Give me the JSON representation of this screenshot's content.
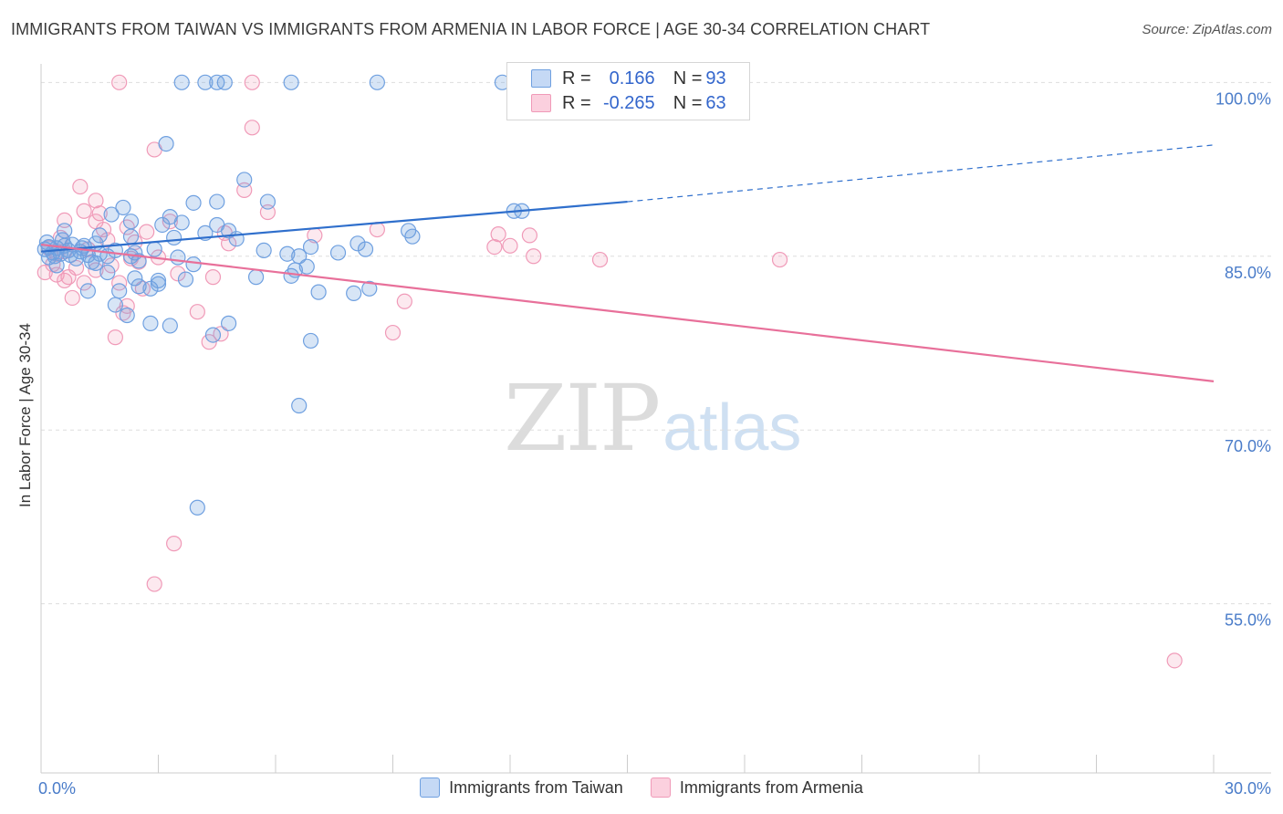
{
  "title": "IMMIGRANTS FROM TAIWAN VS IMMIGRANTS FROM ARMENIA IN LABOR FORCE | AGE 30-34 CORRELATION CHART",
  "source": "Source: ZipAtlas.com",
  "watermark": {
    "zip": "ZIP",
    "atlas": "atlas"
  },
  "legend": {
    "rows": [
      {
        "r_label": "R =",
        "r_value": "0.166",
        "n_label": "N =",
        "n_value": "93"
      },
      {
        "r_label": "R =",
        "r_value": "-0.265",
        "n_label": "N =",
        "n_value": "63"
      }
    ]
  },
  "chart_data": {
    "type": "scatter",
    "title": "IMMIGRANTS FROM TAIWAN VS IMMIGRANTS FROM ARMENIA IN LABOR FORCE | AGE 30-34 CORRELATION CHART",
    "xlabel": "",
    "ylabel": "In Labor Force | Age 30-34",
    "xlim": [
      0,
      30
    ],
    "ylim": [
      40.4,
      101.6
    ],
    "x_tick_labels": [
      "0.0%",
      "30.0%"
    ],
    "x_tick_values": [
      0,
      30
    ],
    "y_tick_labels": [
      "100.0%",
      "85.0%",
      "70.0%",
      "55.0%"
    ],
    "y_tick_values": [
      100,
      85,
      70,
      55
    ],
    "grid": true,
    "legend_position": "top-center",
    "colors": {
      "taiwan": "#6fa0e0",
      "armenia": "#f09ab8",
      "taiwan_line": "#2f6fcc",
      "armenia_line": "#e8709a",
      "tick_label": "#4a7cc9"
    },
    "series": [
      {
        "name": "Immigrants from Taiwan",
        "r": 0.166,
        "n": 93,
        "trend": {
          "x0": 0,
          "y0": 85.4,
          "x1": 15,
          "y1": 89.7,
          "dashed_to_x": 30,
          "dashed_to_y": 94.6
        },
        "points": [
          [
            3.6,
            100
          ],
          [
            4.2,
            100
          ],
          [
            4.5,
            100
          ],
          [
            4.7,
            100
          ],
          [
            6.4,
            100
          ],
          [
            8.6,
            100
          ],
          [
            11.8,
            100
          ],
          [
            3.2,
            94.7
          ],
          [
            5.2,
            91.6
          ],
          [
            3.9,
            89.6
          ],
          [
            4.5,
            89.7
          ],
          [
            5.8,
            89.7
          ],
          [
            2.1,
            89.2
          ],
          [
            12.1,
            88.9
          ],
          [
            12.3,
            88.9
          ],
          [
            1.8,
            88.6
          ],
          [
            3.3,
            88.4
          ],
          [
            2.3,
            88.0
          ],
          [
            3.6,
            87.9
          ],
          [
            3.1,
            87.7
          ],
          [
            4.5,
            87.7
          ],
          [
            4.8,
            87.2
          ],
          [
            1.5,
            86.8
          ],
          [
            2.3,
            86.7
          ],
          [
            0.6,
            87.2
          ],
          [
            3.4,
            86.6
          ],
          [
            9.4,
            87.2
          ],
          [
            9.5,
            86.7
          ],
          [
            0.2,
            85.8
          ],
          [
            0.4,
            85.7
          ],
          [
            0.6,
            85.9
          ],
          [
            0.8,
            86.0
          ],
          [
            1.1,
            85.9
          ],
          [
            1.4,
            86.1
          ],
          [
            1.9,
            85.5
          ],
          [
            0.3,
            85.3
          ],
          [
            0.5,
            85.2
          ],
          [
            0.7,
            85.5
          ],
          [
            1.0,
            85.4
          ],
          [
            1.2,
            85.1
          ],
          [
            1.5,
            85.2
          ],
          [
            1.7,
            85.0
          ],
          [
            2.3,
            85.0
          ],
          [
            3.5,
            84.9
          ],
          [
            5.7,
            85.5
          ],
          [
            6.3,
            85.2
          ],
          [
            6.6,
            85.0
          ],
          [
            6.9,
            85.8
          ],
          [
            8.1,
            86.1
          ],
          [
            8.3,
            85.6
          ],
          [
            1.4,
            84.4
          ],
          [
            2.5,
            84.6
          ],
          [
            6.8,
            84.1
          ],
          [
            6.5,
            83.8
          ],
          [
            1.7,
            83.6
          ],
          [
            2.4,
            83.1
          ],
          [
            3.0,
            82.9
          ],
          [
            3.7,
            83.0
          ],
          [
            6.4,
            83.3
          ],
          [
            2.5,
            82.4
          ],
          [
            1.2,
            82.0
          ],
          [
            2.0,
            82.0
          ],
          [
            2.8,
            82.2
          ],
          [
            3.0,
            82.6
          ],
          [
            7.1,
            81.9
          ],
          [
            8.0,
            81.8
          ],
          [
            8.4,
            82.2
          ],
          [
            1.9,
            80.8
          ],
          [
            2.2,
            79.9
          ],
          [
            2.8,
            79.2
          ],
          [
            3.3,
            79.0
          ],
          [
            4.8,
            79.2
          ],
          [
            4.4,
            78.2
          ],
          [
            6.9,
            77.7
          ],
          [
            6.6,
            72.1
          ],
          [
            4.0,
            63.3
          ],
          [
            0.1,
            85.6
          ],
          [
            0.2,
            84.9
          ],
          [
            0.4,
            84.2
          ],
          [
            0.9,
            84.8
          ],
          [
            1.3,
            84.5
          ],
          [
            2.4,
            85.3
          ],
          [
            4.2,
            87.0
          ],
          [
            0.15,
            86.2
          ],
          [
            0.35,
            85.0
          ],
          [
            0.55,
            86.4
          ],
          [
            0.75,
            85.1
          ],
          [
            1.05,
            85.7
          ],
          [
            3.9,
            84.3
          ],
          [
            5.5,
            83.2
          ],
          [
            7.6,
            85.3
          ],
          [
            2.9,
            85.6
          ],
          [
            5.0,
            86.5
          ]
        ]
      },
      {
        "name": "Immigrants from Armenia",
        "r": -0.265,
        "n": 63,
        "trend": {
          "x0": 0,
          "y0": 86.0,
          "x1": 30,
          "y1": 74.2
        },
        "points": [
          [
            2.0,
            100
          ],
          [
            5.4,
            100
          ],
          [
            13.1,
            100
          ],
          [
            5.4,
            96.1
          ],
          [
            2.9,
            94.2
          ],
          [
            1.0,
            91.0
          ],
          [
            5.2,
            90.7
          ],
          [
            1.4,
            89.8
          ],
          [
            1.1,
            88.9
          ],
          [
            1.5,
            88.7
          ],
          [
            5.8,
            88.8
          ],
          [
            0.6,
            88.1
          ],
          [
            1.4,
            88.0
          ],
          [
            3.3,
            88.0
          ],
          [
            2.2,
            87.5
          ],
          [
            1.6,
            87.3
          ],
          [
            2.7,
            87.1
          ],
          [
            4.7,
            87.0
          ],
          [
            8.6,
            87.3
          ],
          [
            11.7,
            86.9
          ],
          [
            12.5,
            86.8
          ],
          [
            7.0,
            86.8
          ],
          [
            2.4,
            86.2
          ],
          [
            4.8,
            86.1
          ],
          [
            11.6,
            85.8
          ],
          [
            12.0,
            85.9
          ],
          [
            0.2,
            85.7
          ],
          [
            0.4,
            85.2
          ],
          [
            0.6,
            85.4
          ],
          [
            1.2,
            85.6
          ],
          [
            12.6,
            85.0
          ],
          [
            14.3,
            84.7
          ],
          [
            18.9,
            84.7
          ],
          [
            2.5,
            84.5
          ],
          [
            0.3,
            84.3
          ],
          [
            0.9,
            84.0
          ],
          [
            1.4,
            83.8
          ],
          [
            0.1,
            83.6
          ],
          [
            0.4,
            83.4
          ],
          [
            4.4,
            83.2
          ],
          [
            0.6,
            82.9
          ],
          [
            1.1,
            82.7
          ],
          [
            2.0,
            82.7
          ],
          [
            2.6,
            82.2
          ],
          [
            0.8,
            81.4
          ],
          [
            9.3,
            81.1
          ],
          [
            2.2,
            80.7
          ],
          [
            4.0,
            80.2
          ],
          [
            2.1,
            80.1
          ],
          [
            9.0,
            78.4
          ],
          [
            4.6,
            78.3
          ],
          [
            1.9,
            78.0
          ],
          [
            4.3,
            77.6
          ],
          [
            3.4,
            60.2
          ],
          [
            2.9,
            56.7
          ],
          [
            29.0,
            50.1
          ],
          [
            2.3,
            84.8
          ],
          [
            1.7,
            86.4
          ],
          [
            3.5,
            83.5
          ],
          [
            0.5,
            86.6
          ],
          [
            1.8,
            84.2
          ],
          [
            0.7,
            83.2
          ],
          [
            3.0,
            84.9
          ]
        ]
      }
    ]
  }
}
